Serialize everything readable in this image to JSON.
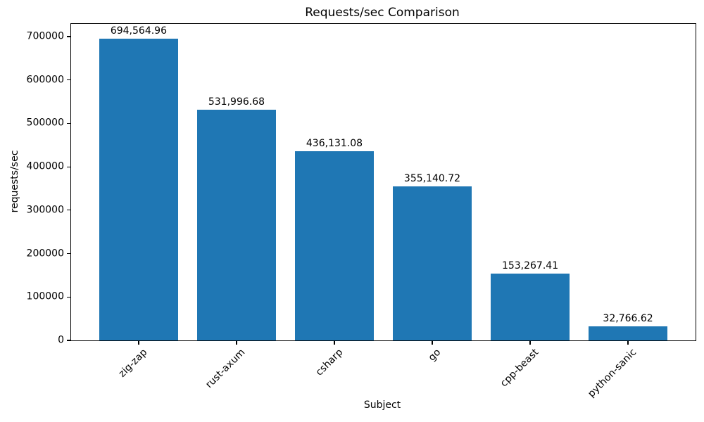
{
  "chart_data": {
    "type": "bar",
    "title": "Requests/sec Comparison",
    "xlabel": "Subject",
    "ylabel": "requests/sec",
    "categories": [
      "zig-zap",
      "rust-axum",
      "csharp",
      "go",
      "cpp-beast",
      "python-sanic"
    ],
    "values": [
      694564.96,
      531996.68,
      436131.08,
      355140.72,
      153267.41,
      32766.62
    ],
    "value_labels": [
      "694,564.96",
      "531,996.68",
      "436,131.08",
      "355,140.72",
      "153,267.41",
      "32,766.62"
    ],
    "yticks": [
      0,
      100000,
      200000,
      300000,
      400000,
      500000,
      600000,
      700000
    ],
    "ytick_labels": [
      "0",
      "100000",
      "200000",
      "300000",
      "400000",
      "500000",
      "600000",
      "700000"
    ],
    "ylim": [
      0,
      729293
    ],
    "bar_color": "#1f77b4",
    "grid": false,
    "legend_position": "none",
    "x_tick_rotation_deg": 45,
    "bar_width_fraction": 0.8
  }
}
